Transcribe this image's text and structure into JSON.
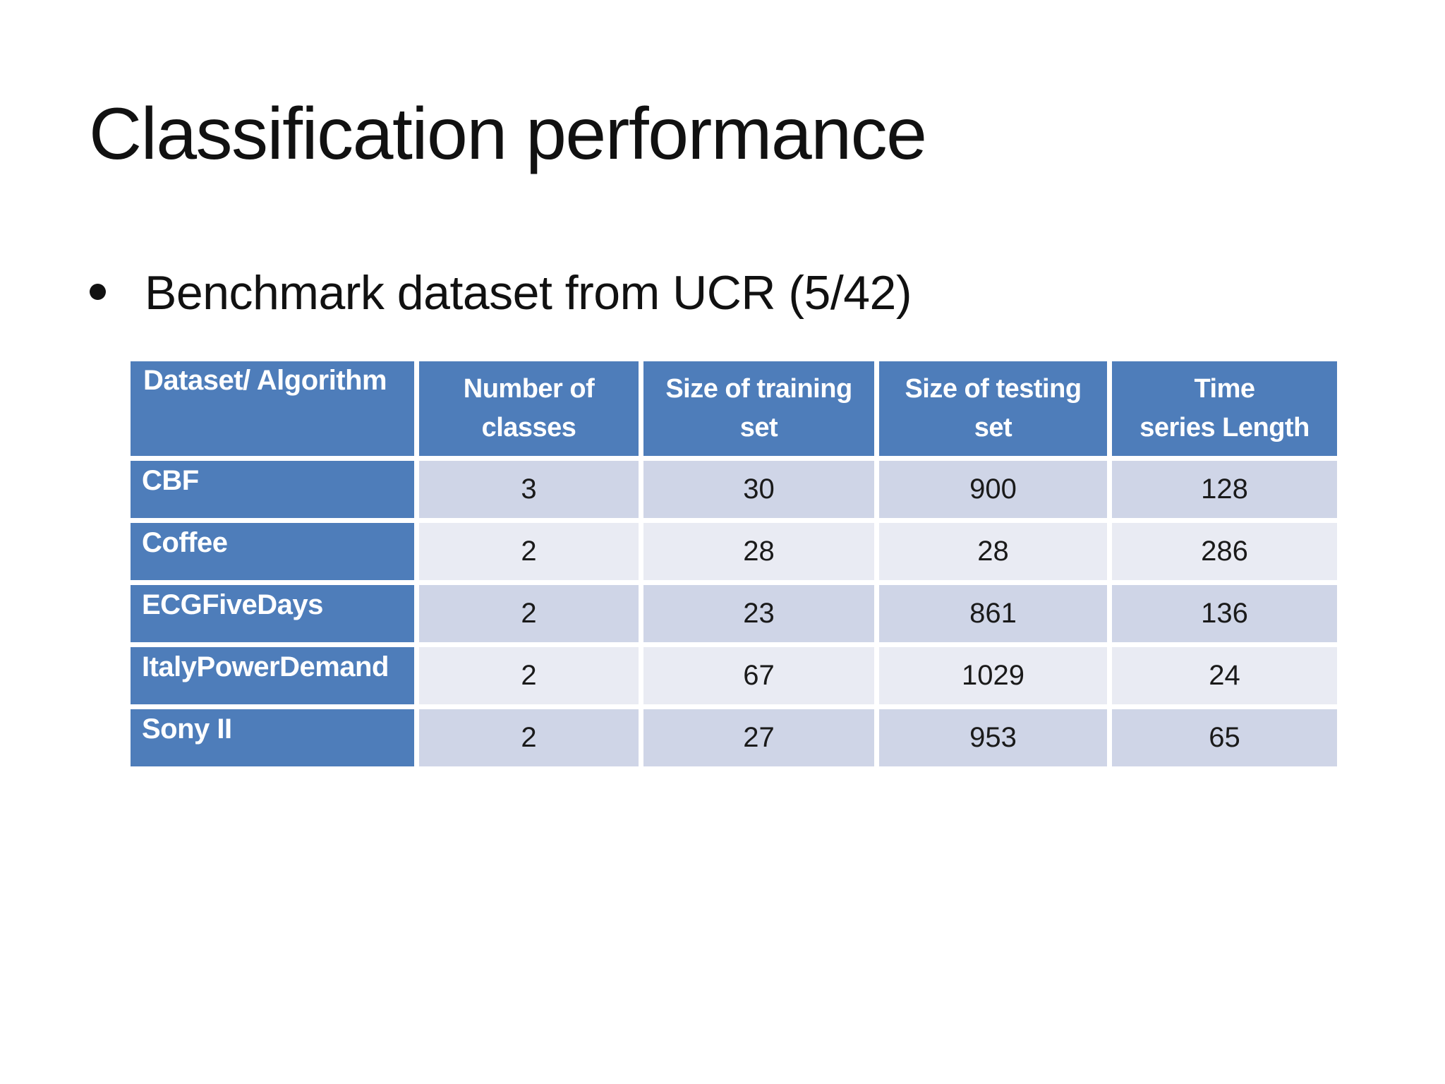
{
  "slide": {
    "title": "Classification performance",
    "bullet": "Benchmark dataset from UCR (5/42)"
  },
  "table": {
    "columns": [
      "Dataset/ Algorithm",
      "Number of\nclasses",
      "Size of training\nset",
      "Size of testing\nset",
      "Time\nseries Length"
    ],
    "rows": [
      {
        "label": "CBF",
        "values": [
          "3",
          "30",
          "900",
          "128"
        ]
      },
      {
        "label": "Coffee",
        "values": [
          "2",
          "28",
          "28",
          "286"
        ]
      },
      {
        "label": "ECGFiveDays",
        "values": [
          "2",
          "23",
          "861",
          "136"
        ]
      },
      {
        "label": "ItalyPowerDemand",
        "values": [
          "2",
          "67",
          "1029",
          "24"
        ]
      },
      {
        "label": "Sony II",
        "values": [
          "2",
          "27",
          "953",
          "65"
        ]
      }
    ]
  },
  "colors": {
    "header_blue": "#4E7DBA",
    "band_dark": "#CFD5E7",
    "band_light": "#E9EBF3"
  }
}
